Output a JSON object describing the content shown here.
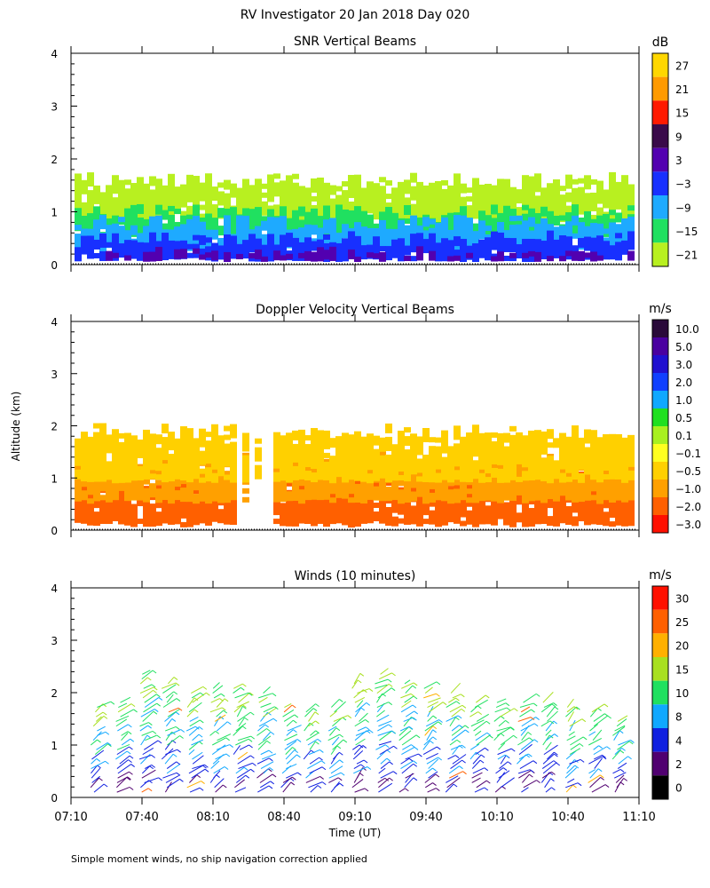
{
  "figure": {
    "title": "RV Investigator  20 Jan 2018 Day 020",
    "ylabel": "Altitude (km)",
    "xlabel": "Time (UT)",
    "footnote": "Simple moment winds, no ship navigation correction applied",
    "y_ticks": [
      "0",
      "1",
      "2",
      "3",
      "4"
    ],
    "x_ticks": [
      "07:10",
      "07:40",
      "08:10",
      "08:40",
      "09:10",
      "09:40",
      "10:10",
      "10:40",
      "11:10"
    ]
  },
  "chart_data": [
    {
      "type": "heatmap",
      "title": "SNR Vertical Beams",
      "ylabel": "Altitude (km)",
      "xrange_hours": [
        7.1667,
        11.1667
      ],
      "ylim": [
        0,
        4
      ],
      "colorbar": {
        "unit": "dB",
        "labels": [
          "27",
          "21",
          "15",
          "9",
          "3",
          "−3",
          "−9",
          "−15",
          "−21"
        ],
        "colors": [
          "#ffd700",
          "#ff9a00",
          "#ff1a00",
          "#3a0a4a",
          "#5200b0",
          "#1830ff",
          "#1eaaff",
          "#20e060",
          "#b8f020"
        ]
      },
      "layers": [
        {
          "label": "−21",
          "alt_km": [
            0.9,
            1.6
          ],
          "color": "#b8f020"
        },
        {
          "label": "−15",
          "alt_km": [
            0.6,
            1.0
          ],
          "color": "#20e060"
        },
        {
          "label": "−9",
          "alt_km": [
            0.35,
            0.8
          ],
          "color": "#1eaaff"
        },
        {
          "label": "−3",
          "alt_km": [
            0.15,
            0.5
          ],
          "color": "#1830ff"
        },
        {
          "label": "3",
          "alt_km": [
            0.15,
            0.2
          ],
          "color": "#5200b0"
        }
      ]
    },
    {
      "type": "heatmap",
      "title": "Doppler Velocity Vertical Beams",
      "ylabel": "Altitude (km)",
      "xrange_hours": [
        7.1667,
        11.1667
      ],
      "ylim": [
        0,
        4
      ],
      "colorbar": {
        "unit": "m/s",
        "labels": [
          "10.0",
          "5.0",
          "3.0",
          "2.0",
          "1.0",
          "0.5",
          "0.1",
          "−0.1",
          "−0.5",
          "−1.0",
          "−2.0",
          "−3.0"
        ],
        "colors": [
          "#2a0a3a",
          "#4a00a0",
          "#2010d0",
          "#1040ff",
          "#10a8ff",
          "#20e020",
          "#a8f020",
          "#ffff20",
          "#ffd000",
          "#ffa000",
          "#ff6000",
          "#ff1000"
        ]
      },
      "layers": [
        {
          "label": "−2.0",
          "alt_km": [
            0.15,
            1.0
          ],
          "color": "#ff6000"
        },
        {
          "label": "−1.0",
          "alt_km": [
            0.6,
            1.4
          ],
          "color": "#ffa000"
        },
        {
          "label": "−0.5",
          "alt_km": [
            1.0,
            1.9
          ],
          "color": "#ffd000"
        }
      ]
    },
    {
      "type": "scatter",
      "title": "Winds (10 minutes)",
      "ylabel": "Altitude (km)",
      "xlabel": "Time (UT)",
      "xrange_hours": [
        7.1667,
        11.1667
      ],
      "ylim": [
        0,
        4
      ],
      "colorbar": {
        "unit": "m/s",
        "labels": [
          "30",
          "25",
          "20",
          "15",
          "10",
          "8",
          "4",
          "2",
          "0"
        ],
        "colors": [
          "#ff1000",
          "#ff6000",
          "#ffb000",
          "#a8e020",
          "#20e060",
          "#10a8ff",
          "#1020e0",
          "#500070",
          "#000000"
        ]
      },
      "profile_hours": [
        7.33,
        7.5,
        7.67,
        7.83,
        8.0,
        8.17,
        8.33,
        8.5,
        8.67,
        8.83,
        9.0,
        9.17,
        9.33,
        9.5,
        9.67,
        9.83,
        10.0,
        10.17,
        10.33,
        10.5,
        10.67,
        10.83,
        11.0
      ],
      "profile_top_km": [
        1.8,
        1.9,
        2.4,
        2.2,
        2.0,
        2.1,
        2.1,
        2.0,
        1.8,
        1.7,
        1.8,
        2.2,
        2.4,
        2.2,
        2.1,
        2.0,
        1.9,
        1.9,
        1.9,
        1.9,
        1.8,
        1.7,
        1.5
      ]
    }
  ]
}
